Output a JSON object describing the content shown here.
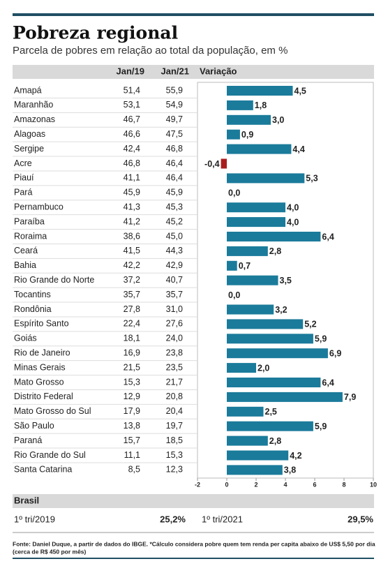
{
  "title": "Pobreza regional",
  "subtitle": "Parcela de pobres em relação ao total da população, em %",
  "chart_data": {
    "type": "bar",
    "orientation": "horizontal",
    "columns": [
      "Jan/19",
      "Jan/21",
      "Variação"
    ],
    "categories": [
      "Amapá",
      "Maranhão",
      "Amazonas",
      "Alagoas",
      "Sergipe",
      "Acre",
      "Piauí",
      "Pará",
      "Pernambuco",
      "Paraíba",
      "Roraima",
      "Ceará",
      "Bahia",
      "Rio Grande do Norte",
      "Tocantins",
      "Rondônia",
      "Espírito Santo",
      "Goiás",
      "Rio de Janeiro",
      "Minas Gerais",
      "Mato Grosso",
      "Distrito Federal",
      "Mato Grosso do Sul",
      "São Paulo",
      "Paraná",
      "Rio Grande do Sul",
      "Santa Catarina"
    ],
    "jan19": [
      "51,4",
      "53,1",
      "46,7",
      "46,6",
      "42,4",
      "46,8",
      "41,1",
      "45,9",
      "41,3",
      "41,2",
      "38,6",
      "41,5",
      "42,2",
      "37,2",
      "35,7",
      "27,8",
      "22,4",
      "18,1",
      "16,9",
      "21,5",
      "15,3",
      "12,9",
      "17,9",
      "13,8",
      "15,7",
      "11,1",
      "8,5"
    ],
    "jan21": [
      "55,9",
      "54,9",
      "49,7",
      "47,5",
      "46,8",
      "46,4",
      "46,4",
      "45,9",
      "45,3",
      "45,2",
      "45,0",
      "44,3",
      "42,9",
      "40,7",
      "35,7",
      "31,0",
      "27,6",
      "24,0",
      "23,8",
      "23,5",
      "21,7",
      "20,8",
      "20,4",
      "19,7",
      "18,5",
      "15,3",
      "12,3"
    ],
    "values": [
      4.5,
      1.8,
      3.0,
      0.9,
      4.4,
      -0.4,
      5.3,
      0.0,
      4.0,
      4.0,
      6.4,
      2.8,
      0.7,
      3.5,
      0.0,
      3.2,
      5.2,
      5.9,
      6.9,
      2.0,
      6.4,
      7.9,
      2.5,
      5.9,
      2.8,
      4.2,
      3.8
    ],
    "value_labels": [
      "4,5",
      "1,8",
      "3,0",
      "0,9",
      "4,4",
      "-0,4",
      "5,3",
      "0,0",
      "4,0",
      "4,0",
      "6,4",
      "2,8",
      "0,7",
      "3,5",
      "0,0",
      "3,2",
      "5,2",
      "5,9",
      "6,9",
      "2,0",
      "6,4",
      "7,9",
      "2,5",
      "5,9",
      "2,8",
      "4,2",
      "3,8"
    ],
    "color": "#1b7b9b",
    "negative_color": "#a81e1e",
    "xlim": [
      -2,
      10
    ],
    "xticks": [
      -2,
      0,
      2,
      4,
      6,
      8,
      10
    ]
  },
  "summary": {
    "title": "Brasil",
    "items": [
      {
        "label": "1º tri/2019",
        "value": "25,2%"
      },
      {
        "label": "1º tri/2021",
        "value": "29,5%"
      }
    ]
  },
  "footer_lines": [
    "Fonte: Daniel Duque, a partir de dados do IBGE. *Cálculo considera pobre quem tem renda per capita abaixo de US$ 5,50 por dia",
    "(cerca de R$ 450 por mês)"
  ]
}
